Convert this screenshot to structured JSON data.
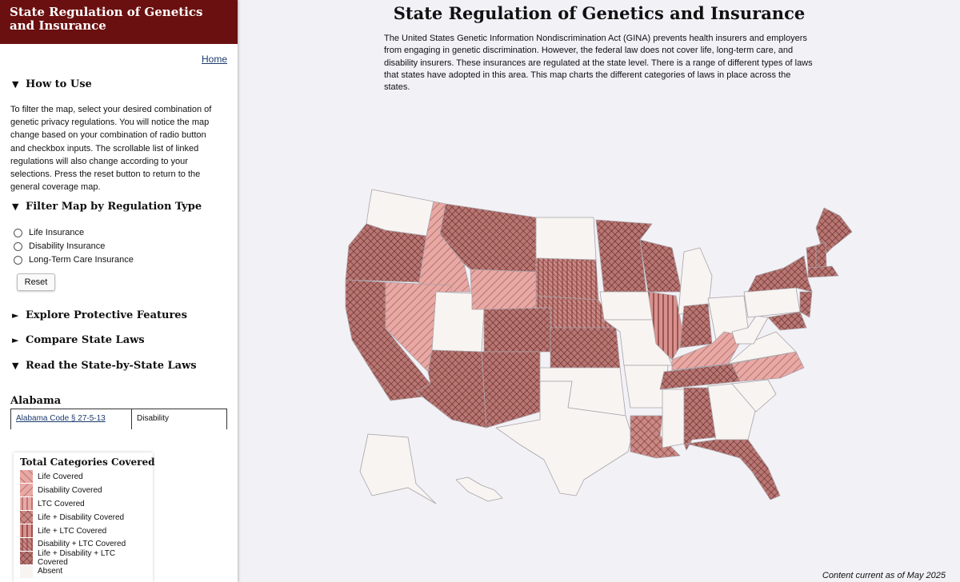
{
  "sidebar": {
    "header_title": "State Regulation of Genetics and Insurance",
    "home_link": "Home",
    "how_to_use": {
      "heading": "How to Use",
      "text": "To filter the map, select your desired combination of genetic privacy regulations. You will notice the map change based on your combination of radio button and checkbox inputs. The scrollable list of linked regulations will also change according to your selections. Press the reset button to return to the general coverage map."
    },
    "filter": {
      "heading": "Filter Map by Regulation Type",
      "options": [
        "Life Insurance",
        "Disability Insurance",
        "Long-Term Care Insurance"
      ],
      "reset_label": "Reset"
    },
    "collapsed_sections": [
      "Explore Protective Features",
      "Compare State Laws"
    ],
    "read_laws_heading": "Read the State-by-State Laws",
    "state_name": "Alabama",
    "law_rows": [
      {
        "citation": "Alabama Code § 27-5-13",
        "type": "Disability"
      }
    ],
    "arrows": {
      "open": "▼",
      "closed": "►"
    }
  },
  "legend": {
    "title": "Total Categories Covered",
    "items": [
      {
        "label": "Life Covered",
        "pattern": "life"
      },
      {
        "label": "Disability Covered",
        "pattern": "dis"
      },
      {
        "label": "LTC Covered",
        "pattern": "ltc"
      },
      {
        "label": "Life + Disability Covered",
        "pattern": "lifedis"
      },
      {
        "label": "Life + LTC Covered",
        "pattern": "lifeltc"
      },
      {
        "label": "Disability + LTC Covered",
        "pattern": "disltc"
      },
      {
        "label": "Life + Disability + LTC Covered",
        "pattern": "all"
      },
      {
        "label": "Absent",
        "pattern": "absent"
      }
    ]
  },
  "main": {
    "title": "State Regulation of Genetics and Insurance",
    "intro": "The United States Genetic Information Nondiscrimination Act (GINA) prevents health insurers and employers from engaging in genetic discrimination. However, the federal law does not cover life, long-term care, and disability insurers. These insurances are regulated at the state level. There is a range of different types of laws that states have adopted in this area. This map charts the different categories of laws in place across the states.",
    "footer": "Content current as of May 2025"
  },
  "colors": {
    "header_bg": "#6b1010",
    "absent_fill": "#f7f4f2",
    "light_fill": "#e8a8a4",
    "dark_fill": "#b87673",
    "state_stroke": "#a9a3a8"
  },
  "map": {
    "states": [
      {
        "code": "WA",
        "category": "absent"
      },
      {
        "code": "OR",
        "category": "all"
      },
      {
        "code": "CA",
        "category": "all"
      },
      {
        "code": "ID",
        "category": "dis"
      },
      {
        "code": "NV",
        "category": "dis"
      },
      {
        "code": "MT",
        "category": "all"
      },
      {
        "code": "WY",
        "category": "dis"
      },
      {
        "code": "UT",
        "category": "absent"
      },
      {
        "code": "AZ",
        "category": "all"
      },
      {
        "code": "CO",
        "category": "all"
      },
      {
        "code": "NM",
        "category": "all"
      },
      {
        "code": "ND",
        "category": "absent"
      },
      {
        "code": "SD",
        "category": "disltc"
      },
      {
        "code": "NE",
        "category": "disltc"
      },
      {
        "code": "KS",
        "category": "all"
      },
      {
        "code": "OK",
        "category": "absent"
      },
      {
        "code": "TX",
        "category": "absent"
      },
      {
        "code": "MN",
        "category": "all"
      },
      {
        "code": "IA",
        "category": "absent"
      },
      {
        "code": "MO",
        "category": "absent"
      },
      {
        "code": "AR",
        "category": "absent"
      },
      {
        "code": "LA",
        "category": "lifedis"
      },
      {
        "code": "WI",
        "category": "all"
      },
      {
        "code": "IL",
        "category": "lifeltc"
      },
      {
        "code": "MI",
        "category": "absent"
      },
      {
        "code": "IN",
        "category": "all"
      },
      {
        "code": "OH",
        "category": "absent"
      },
      {
        "code": "KY",
        "category": "dis"
      },
      {
        "code": "TN",
        "category": "all"
      },
      {
        "code": "MS",
        "category": "absent"
      },
      {
        "code": "AL",
        "category": "all"
      },
      {
        "code": "GA",
        "category": "absent"
      },
      {
        "code": "FL",
        "category": "all"
      },
      {
        "code": "SC",
        "category": "absent"
      },
      {
        "code": "NC",
        "category": "dis"
      },
      {
        "code": "VA",
        "category": "absent"
      },
      {
        "code": "WV",
        "category": "absent"
      },
      {
        "code": "PA",
        "category": "absent"
      },
      {
        "code": "NY",
        "category": "all"
      },
      {
        "code": "ME",
        "category": "all"
      },
      {
        "code": "VT",
        "category": "all"
      },
      {
        "code": "NH",
        "category": "all"
      },
      {
        "code": "MA",
        "category": "all"
      },
      {
        "code": "NJ",
        "category": "all"
      },
      {
        "code": "MD",
        "category": "all"
      },
      {
        "code": "AK",
        "category": "absent"
      },
      {
        "code": "HI",
        "category": "absent"
      }
    ]
  }
}
